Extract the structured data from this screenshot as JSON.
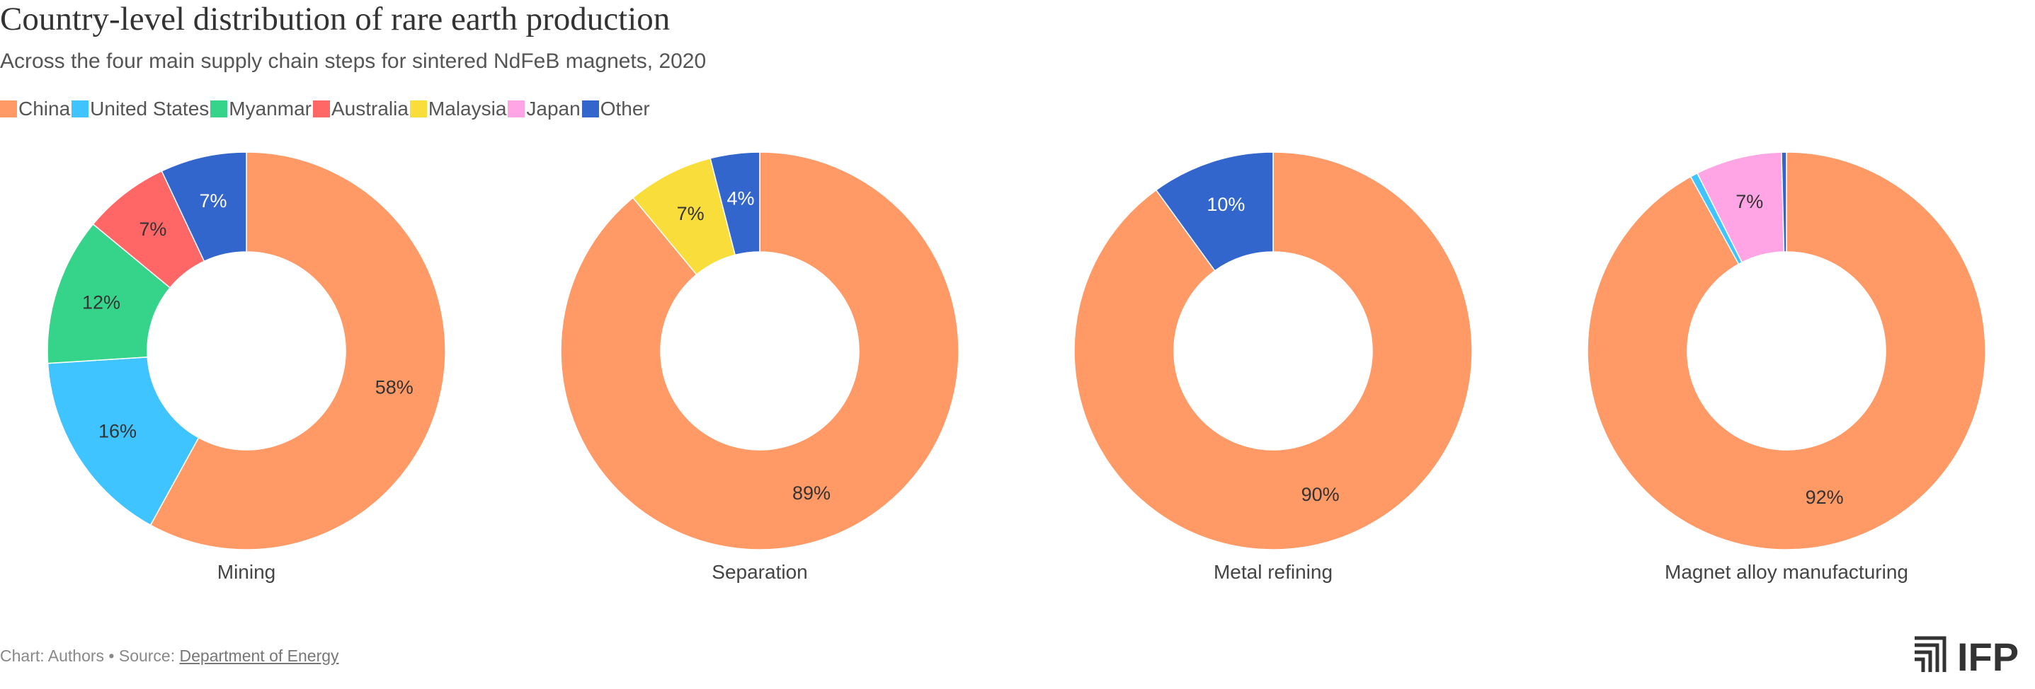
{
  "title": "Country-level distribution of rare earth production",
  "subtitle": "Across the four main supply chain steps for sintered NdFeB magnets, 2020",
  "legend": [
    {
      "label": "China",
      "color": "#FF9966"
    },
    {
      "label": "United States",
      "color": "#40C4FF"
    },
    {
      "label": "Myanmar",
      "color": "#36D48B"
    },
    {
      "label": "Australia",
      "color": "#FF6666"
    },
    {
      "label": "Malaysia",
      "color": "#F9DD3A"
    },
    {
      "label": "Japan",
      "color": "#FFA5E6"
    },
    {
      "label": "Other",
      "color": "#3366CC"
    }
  ],
  "chart_data": [
    {
      "type": "pie",
      "category": "Mining",
      "slices": [
        {
          "name": "China",
          "value": 58,
          "label": "58%"
        },
        {
          "name": "United States",
          "value": 16,
          "label": "16%"
        },
        {
          "name": "Myanmar",
          "value": 12,
          "label": "12%"
        },
        {
          "name": "Australia",
          "value": 7,
          "label": "7%"
        },
        {
          "name": "Other",
          "value": 7,
          "label": "7%"
        }
      ]
    },
    {
      "type": "pie",
      "category": "Separation",
      "slices": [
        {
          "name": "China",
          "value": 89,
          "label": "89%"
        },
        {
          "name": "Malaysia",
          "value": 7,
          "label": "7%"
        },
        {
          "name": "Other",
          "value": 4,
          "label": "4%"
        }
      ]
    },
    {
      "type": "pie",
      "category": "Metal refining",
      "slices": [
        {
          "name": "China",
          "value": 90,
          "label": "90%"
        },
        {
          "name": "Other",
          "value": 10,
          "label": "10%"
        }
      ]
    },
    {
      "type": "pie",
      "category": "Magnet alloy manufacturing",
      "slices": [
        {
          "name": "China",
          "value": 92,
          "label": "92%"
        },
        {
          "name": "United States",
          "value": 0.6,
          "label": ""
        },
        {
          "name": "Japan",
          "value": 7,
          "label": "7%"
        },
        {
          "name": "Other",
          "value": 0.4,
          "label": ""
        }
      ]
    }
  ],
  "footer": {
    "credit": "Chart: Authors • Source: ",
    "source_link": "Department of Energy"
  },
  "logo_text": "IFP"
}
